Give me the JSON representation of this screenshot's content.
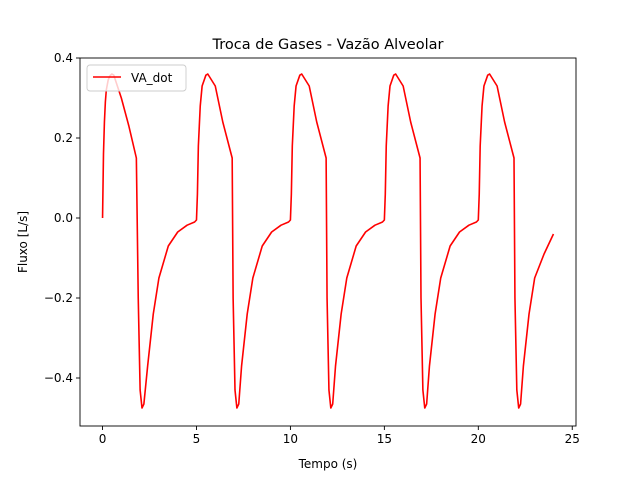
{
  "chart_data": {
    "type": "line",
    "title": "Troca de Gases - Vazão Alveolar",
    "xlabel": "Tempo (s)",
    "ylabel": "Fluxo [L/s]",
    "xlim": [
      -1.2,
      25.2
    ],
    "ylim": [
      -0.52,
      0.4
    ],
    "x_ticks": [
      0,
      5,
      10,
      15,
      20,
      25
    ],
    "x_tick_labels": [
      "0",
      "5",
      "10",
      "15",
      "20",
      "25"
    ],
    "y_ticks": [
      -0.4,
      -0.2,
      0.0,
      0.2,
      0.4
    ],
    "y_tick_labels": [
      "−0.4",
      "−0.2",
      "0.0",
      "0.2",
      "0.4"
    ],
    "grid": false,
    "legend": {
      "placement": "top-left",
      "entries": [
        "VA_dot"
      ]
    },
    "series": [
      {
        "name": "VA_dot",
        "color": "#ff0000",
        "x": [
          0.0,
          0.05,
          0.1,
          0.15,
          0.2,
          0.3,
          0.4,
          0.5,
          0.6,
          1.0,
          1.4,
          1.8,
          1.9,
          2.0,
          2.1,
          2.2,
          2.4,
          2.7,
          3.0,
          3.5,
          4.0,
          4.5,
          4.9,
          5.0,
          5.05,
          5.1,
          5.2,
          5.3,
          5.5,
          5.6,
          6.0,
          6.4,
          6.9,
          6.95,
          7.05,
          7.15,
          7.25,
          7.4,
          7.7,
          8.0,
          8.5,
          9.0,
          9.5,
          9.9,
          10.0,
          10.05,
          10.1,
          10.2,
          10.3,
          10.5,
          10.6,
          11.0,
          11.4,
          11.9,
          11.95,
          12.05,
          12.15,
          12.25,
          12.4,
          12.7,
          13.0,
          13.5,
          14.0,
          14.5,
          14.9,
          15.0,
          15.05,
          15.1,
          15.2,
          15.3,
          15.5,
          15.6,
          16.0,
          16.4,
          16.9,
          16.95,
          17.05,
          17.15,
          17.25,
          17.4,
          17.7,
          18.0,
          18.5,
          19.0,
          19.5,
          19.9,
          20.0,
          20.05,
          20.1,
          20.2,
          20.3,
          20.5,
          20.6,
          21.0,
          21.4,
          21.9,
          21.95,
          22.05,
          22.15,
          22.25,
          22.4,
          22.7,
          23.0,
          23.5,
          24.0
        ],
        "y": [
          0.0,
          0.16,
          0.24,
          0.29,
          0.32,
          0.345,
          0.356,
          0.36,
          0.357,
          0.3,
          0.23,
          0.15,
          -0.2,
          -0.43,
          -0.475,
          -0.465,
          -0.37,
          -0.24,
          -0.15,
          -0.07,
          -0.035,
          -0.018,
          -0.01,
          -0.005,
          0.06,
          0.18,
          0.28,
          0.33,
          0.357,
          0.36,
          0.33,
          0.24,
          0.15,
          -0.2,
          -0.43,
          -0.475,
          -0.465,
          -0.37,
          -0.24,
          -0.15,
          -0.07,
          -0.035,
          -0.018,
          -0.01,
          -0.005,
          0.06,
          0.18,
          0.28,
          0.33,
          0.357,
          0.36,
          0.33,
          0.24,
          0.15,
          -0.2,
          -0.43,
          -0.475,
          -0.465,
          -0.37,
          -0.24,
          -0.15,
          -0.07,
          -0.035,
          -0.018,
          -0.01,
          -0.005,
          0.06,
          0.18,
          0.28,
          0.33,
          0.357,
          0.36,
          0.33,
          0.24,
          0.15,
          -0.2,
          -0.43,
          -0.475,
          -0.465,
          -0.37,
          -0.24,
          -0.15,
          -0.07,
          -0.035,
          -0.018,
          -0.01,
          -0.005,
          0.06,
          0.18,
          0.28,
          0.33,
          0.357,
          0.36,
          0.33,
          0.24,
          0.15,
          -0.2,
          -0.43,
          -0.475,
          -0.465,
          -0.37,
          -0.24,
          -0.15,
          -0.09,
          -0.04
        ]
      }
    ]
  }
}
